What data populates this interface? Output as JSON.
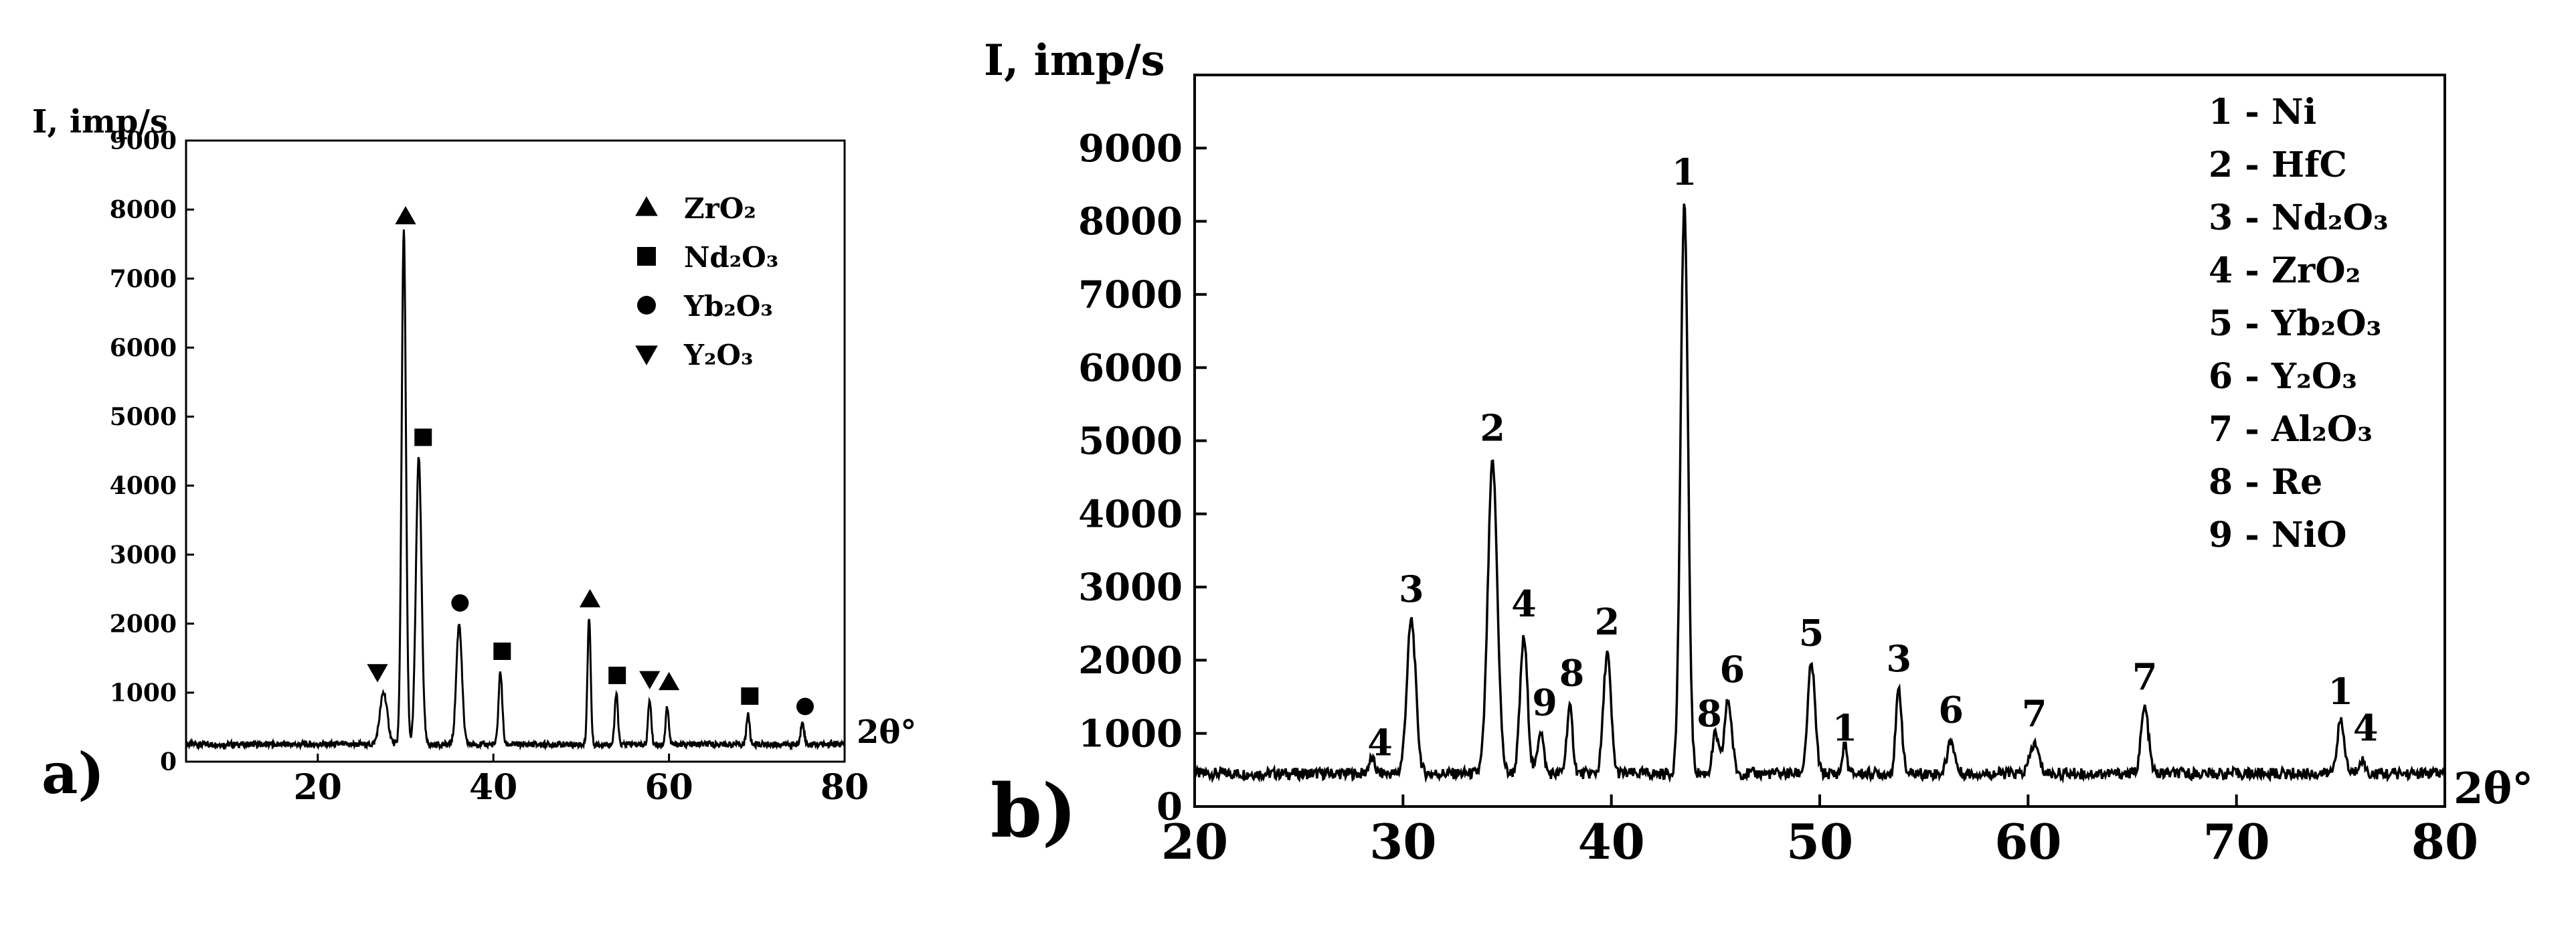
{
  "chart_data": [
    {
      "panel_label": "a)",
      "type": "line",
      "ylabel": "I, imp/s",
      "xlabel": "2θ°",
      "xlim": [
        5,
        80
      ],
      "ylim": [
        0,
        9000
      ],
      "x_ticks": [
        20,
        40,
        60,
        80
      ],
      "y_ticks": [
        0,
        1000,
        2000,
        3000,
        4000,
        5000,
        6000,
        7000,
        8000,
        9000
      ],
      "grid": false,
      "legend_position": "top-right",
      "legend": [
        {
          "marker": "triangle-up",
          "label": "ZrO₂"
        },
        {
          "marker": "square",
          "label": "Nd₂O₃"
        },
        {
          "marker": "circle",
          "label": "Yb₂O₃"
        },
        {
          "marker": "triangle-down",
          "label": "Y₂O₃"
        }
      ],
      "baseline": 250,
      "peaks": [
        {
          "x": 27.5,
          "y": 1000,
          "w": 0.6
        },
        {
          "x": 29.8,
          "y": 7700,
          "w": 0.35
        },
        {
          "x": 31.5,
          "y": 4400,
          "w": 0.45
        },
        {
          "x": 36.1,
          "y": 2000,
          "w": 0.45
        },
        {
          "x": 40.8,
          "y": 1300,
          "w": 0.3
        },
        {
          "x": 50.9,
          "y": 2100,
          "w": 0.25
        },
        {
          "x": 54.0,
          "y": 1000,
          "w": 0.25
        },
        {
          "x": 57.8,
          "y": 900,
          "w": 0.25
        },
        {
          "x": 59.8,
          "y": 800,
          "w": 0.25
        },
        {
          "x": 69.0,
          "y": 700,
          "w": 0.25
        },
        {
          "x": 75.2,
          "y": 600,
          "w": 0.25
        }
      ],
      "markers": [
        {
          "marker": "triangle-up",
          "x": 30.0,
          "y": 7900
        },
        {
          "marker": "square",
          "x": 32.0,
          "y": 4700
        },
        {
          "marker": "circle",
          "x": 36.2,
          "y": 2300
        },
        {
          "marker": "square",
          "x": 41.0,
          "y": 1600
        },
        {
          "marker": "triangle-up",
          "x": 51.0,
          "y": 2350
        },
        {
          "marker": "square",
          "x": 54.1,
          "y": 1250
        },
        {
          "marker": "triangle-down",
          "x": 57.8,
          "y": 1200
        },
        {
          "marker": "triangle-up",
          "x": 60.0,
          "y": 1150
        },
        {
          "marker": "square",
          "x": 69.2,
          "y": 950
        },
        {
          "marker": "circle",
          "x": 75.5,
          "y": 800
        },
        {
          "marker": "triangle-down",
          "x": 26.8,
          "y": 1300
        }
      ]
    },
    {
      "panel_label": "b)",
      "type": "line",
      "ylabel": "I, imp/s",
      "xlabel": "2θ°",
      "xlim": [
        20,
        80
      ],
      "ylim": [
        0,
        10000
      ],
      "x_ticks": [
        20,
        30,
        40,
        50,
        60,
        70,
        80
      ],
      "y_ticks": [
        0,
        1000,
        2000,
        3000,
        4000,
        5000,
        6000,
        7000,
        8000,
        9000
      ],
      "grid": false,
      "legend_position": "top-right",
      "legend": [
        "1 - Ni",
        "2 - HfC",
        "3 - Nd₂O₃",
        "4 - ZrO₂",
        "5 - Yb₂O₃",
        "6 - Y₂O₃",
        "7 - Al₂O₃",
        "8 - Re",
        "9 - NiO"
      ],
      "baseline": 450,
      "peaks": [
        {
          "x": 28.5,
          "y": 650,
          "w": 0.2
        },
        {
          "x": 30.4,
          "y": 2550,
          "w": 0.3
        },
        {
          "x": 34.3,
          "y": 4700,
          "w": 0.32
        },
        {
          "x": 35.8,
          "y": 2300,
          "w": 0.25
        },
        {
          "x": 36.6,
          "y": 1050,
          "w": 0.2
        },
        {
          "x": 38.0,
          "y": 1350,
          "w": 0.2
        },
        {
          "x": 39.8,
          "y": 2100,
          "w": 0.25
        },
        {
          "x": 43.5,
          "y": 8250,
          "w": 0.25
        },
        {
          "x": 45.0,
          "y": 1000,
          "w": 0.2
        },
        {
          "x": 45.6,
          "y": 1450,
          "w": 0.25
        },
        {
          "x": 49.6,
          "y": 1950,
          "w": 0.25
        },
        {
          "x": 51.2,
          "y": 850,
          "w": 0.15
        },
        {
          "x": 53.8,
          "y": 1600,
          "w": 0.2
        },
        {
          "x": 56.3,
          "y": 900,
          "w": 0.25
        },
        {
          "x": 60.3,
          "y": 850,
          "w": 0.3
        },
        {
          "x": 65.6,
          "y": 1350,
          "w": 0.25
        },
        {
          "x": 75.0,
          "y": 1150,
          "w": 0.25
        },
        {
          "x": 76.0,
          "y": 650,
          "w": 0.2
        }
      ],
      "peak_labels": [
        {
          "text": "4",
          "x": 28.9,
          "y": 700
        },
        {
          "text": "3",
          "x": 30.4,
          "y": 2800
        },
        {
          "text": "2",
          "x": 34.3,
          "y": 5000
        },
        {
          "text": "4",
          "x": 35.8,
          "y": 2600
        },
        {
          "text": "9",
          "x": 36.8,
          "y": 1250
        },
        {
          "text": "8",
          "x": 38.1,
          "y": 1650
        },
        {
          "text": "2",
          "x": 39.8,
          "y": 2350
        },
        {
          "text": "1",
          "x": 43.5,
          "y": 8500
        },
        {
          "text": "8",
          "x": 44.7,
          "y": 1100
        },
        {
          "text": "6",
          "x": 45.8,
          "y": 1700
        },
        {
          "text": "5",
          "x": 49.6,
          "y": 2200
        },
        {
          "text": "1",
          "x": 51.2,
          "y": 900
        },
        {
          "text": "3",
          "x": 53.8,
          "y": 1850
        },
        {
          "text": "6",
          "x": 56.3,
          "y": 1150
        },
        {
          "text": "7",
          "x": 60.3,
          "y": 1100
        },
        {
          "text": "7",
          "x": 65.6,
          "y": 1600
        },
        {
          "text": "1",
          "x": 75.0,
          "y": 1400
        },
        {
          "text": "4",
          "x": 76.2,
          "y": 900
        }
      ]
    }
  ]
}
